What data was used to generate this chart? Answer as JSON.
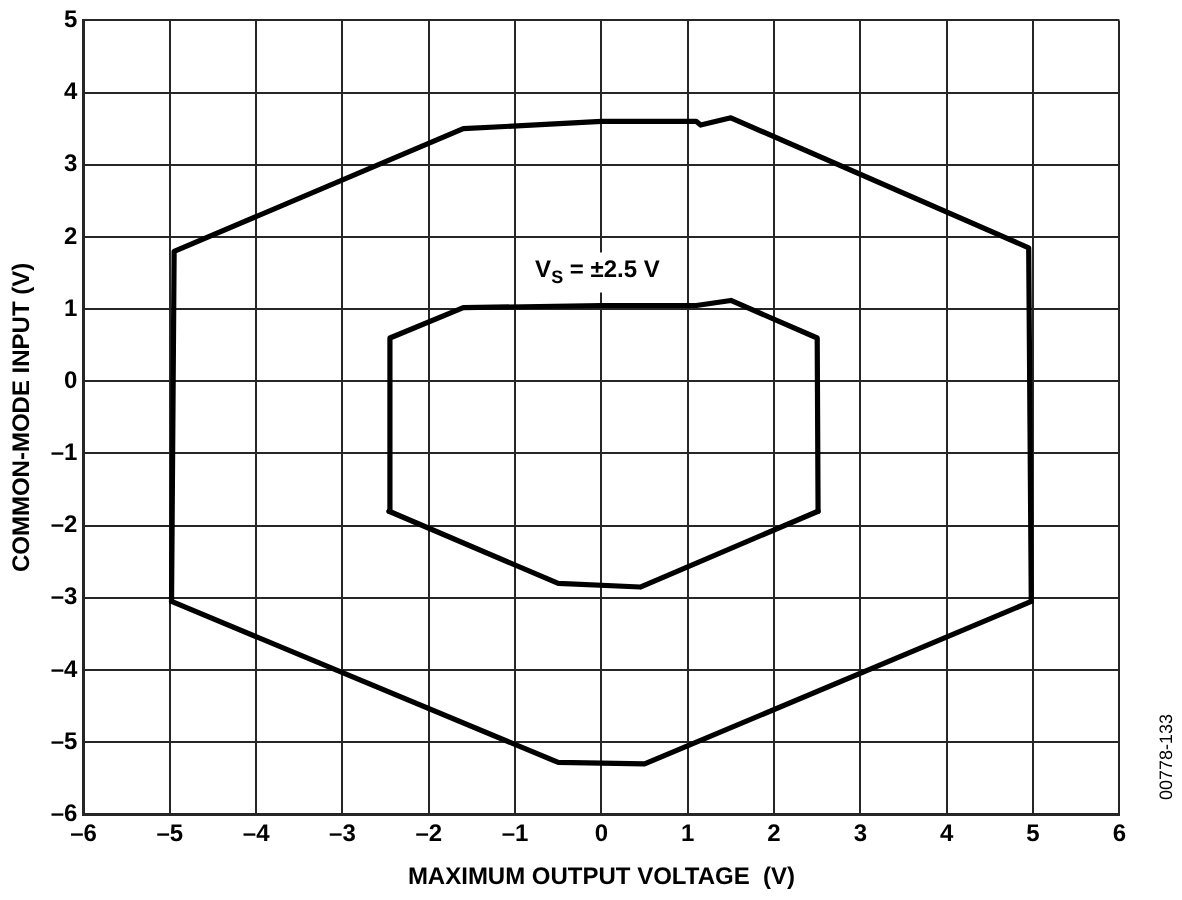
{
  "chart_data": {
    "type": "line",
    "xlabel": "MAXIMUM OUTPUT VOLTAGE  (V)",
    "ylabel": "COMMON-MODE INPUT (V)",
    "xlim": [
      -6,
      6
    ],
    "xticks": [
      {
        "value": -6,
        "label": "–6"
      },
      {
        "value": -5,
        "label": "–5"
      },
      {
        "value": -4,
        "label": "–4"
      },
      {
        "value": -3,
        "label": "–3"
      },
      {
        "value": -2,
        "label": "–2"
      },
      {
        "value": -1,
        "label": "–1"
      },
      0,
      1,
      2,
      3,
      4,
      5,
      6
    ],
    "ylim": [
      -6,
      5
    ],
    "yticks": [
      {
        "value": -6,
        "label": "–6"
      },
      {
        "value": -5,
        "label": "–5"
      },
      {
        "value": -4,
        "label": "–4"
      },
      {
        "value": -3,
        "label": "–3"
      },
      {
        "value": -2,
        "label": "–2"
      },
      {
        "value": -1,
        "label": "–1"
      },
      0,
      1,
      2,
      3,
      4,
      5
    ],
    "grid": true,
    "legend": false,
    "marker": "none",
    "line_style": "solid",
    "series": [
      {
        "color": "#000000",
        "x": [
          -4.98,
          -4.95,
          -1.6,
          0,
          1.1,
          1.15,
          1.5,
          4.95,
          4.98
        ],
        "values": [
          -3.05,
          1.8,
          3.5,
          3.6,
          3.6,
          3.55,
          3.65,
          1.85,
          -3.05
        ]
      },
      {
        "color": "#000000",
        "x": [
          -4.98,
          -0.5,
          0.5,
          4.98
        ],
        "values": [
          -3.05,
          -5.28,
          -5.3,
          -3.05
        ]
      },
      {
        "color": "#000000",
        "x": [
          -2.46,
          -2.45,
          -1.6,
          0,
          1.1,
          1.5,
          2.5,
          2.51
        ],
        "values": [
          -1.8,
          0.6,
          1.02,
          1.05,
          1.05,
          1.12,
          0.6,
          -1.8
        ]
      },
      {
        "color": "#000000",
        "x": [
          -2.46,
          -0.5,
          0.45,
          2.51
        ],
        "values": [
          -1.8,
          -2.8,
          -2.85,
          -1.8
        ]
      }
    ],
    "annotations": [
      "V$_{S}$ = ±2.5 V",
      "00778-133"
    ]
  }
}
